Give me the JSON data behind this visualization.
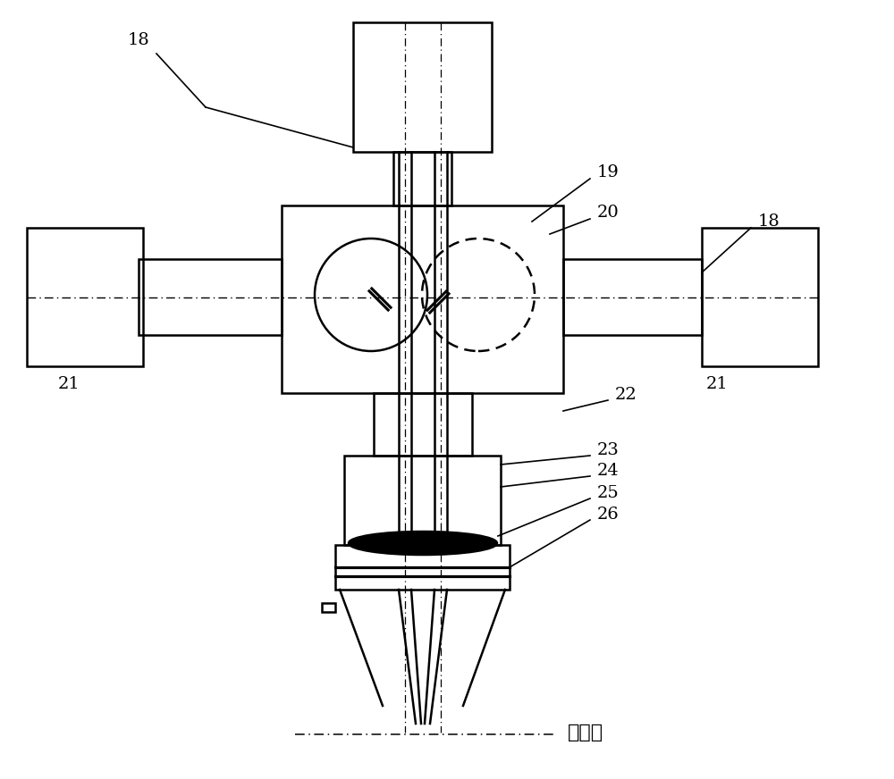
{
  "bg_color": "#ffffff",
  "line_color": "#000000",
  "fig_width": 10.0,
  "fig_height": 8.72,
  "labels": {
    "focal": "焉平面"
  }
}
